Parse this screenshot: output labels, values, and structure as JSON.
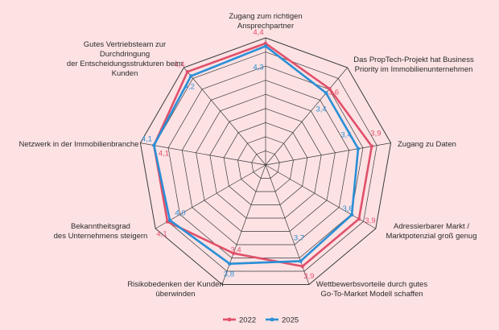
{
  "chart_data": {
    "type": "radar",
    "rmin": 0,
    "rmax": 4.6,
    "rings": 9,
    "axes": [
      {
        "lines": [
          "Zugang zum richtigen",
          "Ansprechpartner"
        ]
      },
      {
        "lines": [
          "Das PropTech-Projekt hat Business",
          "Priority im Immobilienunternehmen"
        ]
      },
      {
        "lines": [
          "Zugang zu Daten"
        ]
      },
      {
        "lines": [
          "Adressierbarer Markt /",
          "Marktpotenzial groß genug"
        ]
      },
      {
        "lines": [
          "Wettbewerbsvorteile durch gutes",
          "Go-To-Market Modell schaffen"
        ]
      },
      {
        "lines": [
          "Risikobedenken der Kunden",
          "überwinden"
        ]
      },
      {
        "lines": [
          "Bekanntheitsgrad",
          "des Unternehmens steigern"
        ]
      },
      {
        "lines": [
          "Netzwerk in der Immobilienbranche"
        ]
      },
      {
        "lines": [
          "Gutes Vertriebsteam zur",
          "Durchdringung",
          "der Entscheidungsstrukturen beim",
          "Kunden"
        ]
      }
    ],
    "series": [
      {
        "name": "2022",
        "color": "#e0506a",
        "values": [
          4.4,
          3.6,
          3.9,
          3.9,
          3.9,
          3.4,
          4.1,
          4.1,
          4.4
        ],
        "labels": [
          "4,4",
          "3,6",
          "3,9",
          "3,9",
          "3,9",
          "3,4",
          "4,1",
          "4,1",
          "4,4"
        ]
      },
      {
        "name": "2025",
        "color": "#2a8fd6",
        "values": [
          4.3,
          3.4,
          3.4,
          3.6,
          3.7,
          3.8,
          4.0,
          4.1,
          4.2
        ],
        "labels": [
          "4,3",
          "3,4",
          "3,4",
          "3,6",
          "3,7",
          "3,8",
          "4,0",
          "4,1",
          "4,2"
        ]
      }
    ],
    "legend_position": "bottom"
  }
}
